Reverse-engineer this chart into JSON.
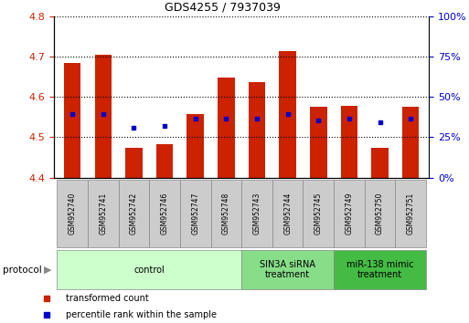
{
  "title": "GDS4255 / 7937039",
  "samples": [
    "GSM952740",
    "GSM952741",
    "GSM952742",
    "GSM952746",
    "GSM952747",
    "GSM952748",
    "GSM952743",
    "GSM952744",
    "GSM952745",
    "GSM952749",
    "GSM952750",
    "GSM952751"
  ],
  "transformed_count": [
    4.685,
    4.705,
    4.475,
    4.484,
    4.558,
    4.648,
    4.637,
    4.714,
    4.575,
    4.578,
    4.474,
    4.575
  ],
  "percentile_rank": [
    4.558,
    4.558,
    4.523,
    4.529,
    4.547,
    4.547,
    4.547,
    4.558,
    4.541,
    4.547,
    4.537,
    4.547
  ],
  "bar_bottom": 4.4,
  "ylim": [
    4.4,
    4.8
  ],
  "yticks_left": [
    4.4,
    4.5,
    4.6,
    4.7,
    4.8
  ],
  "yticks_right": [
    0,
    25,
    50,
    75,
    100
  ],
  "bar_color": "#cc2200",
  "dot_color": "#0000cc",
  "groups": [
    {
      "label": "control",
      "start": 0,
      "end": 5,
      "color": "#ccffcc"
    },
    {
      "label": "SIN3A siRNA\ntreatment",
      "start": 6,
      "end": 8,
      "color": "#88dd88"
    },
    {
      "label": "miR-138 mimic\ntreatment",
      "start": 9,
      "end": 11,
      "color": "#44bb44"
    }
  ],
  "legend_items": [
    {
      "label": "transformed count",
      "color": "#cc2200"
    },
    {
      "label": "percentile rank within the sample",
      "color": "#0000cc"
    }
  ],
  "grid_color": "#000000",
  "bar_width": 0.55,
  "label_box_color": "#cccccc",
  "label_box_edge": "#888888"
}
